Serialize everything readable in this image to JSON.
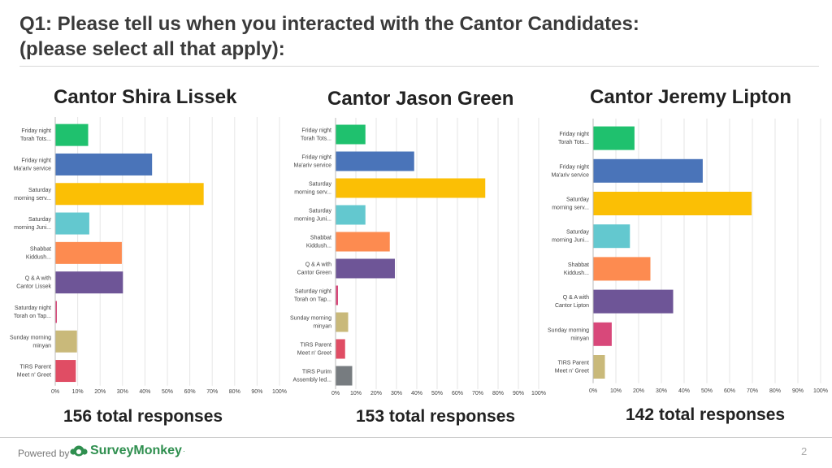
{
  "slide": {
    "title_line1": "Q1: Please tell us when you interacted with the Cantor Candidates:",
    "title_line2": "(please select all that apply):",
    "page_number": "2"
  },
  "footer": {
    "powered_by": "Powered by",
    "brand": "SurveyMonkey",
    "brand_mark": "·"
  },
  "colors": [
    "#1fc16e",
    "#4a74b9",
    "#fbbf05",
    "#63c8cf",
    "#fd8b50",
    "#6e5597",
    "#d8487a",
    "#c9b97a",
    "#e04d64",
    "#777c80"
  ],
  "candidates": [
    {
      "name": "Cantor Shira Lissek",
      "responses": "156 total responses"
    },
    {
      "name": "Cantor Jason Green",
      "responses": "153 total responses"
    },
    {
      "name": "Cantor Jeremy Lipton",
      "responses": "142 total responses"
    }
  ],
  "chart_data": [
    {
      "type": "bar",
      "orientation": "horizontal",
      "title": "Cantor Shira Lissek",
      "categories": [
        [
          "Friday night",
          "Torah Tots..."
        ],
        [
          "Friday night",
          "Ma'ariv service"
        ],
        [
          "Saturday",
          "morning serv..."
        ],
        [
          "Saturday",
          "morning Juni..."
        ],
        [
          "Shabbat",
          "Kiddush..."
        ],
        [
          "Q & A with",
          "Cantor Lissek"
        ],
        [
          "Saturday night",
          "Torah on Tap..."
        ],
        [
          "Sunday morning",
          "minyan"
        ],
        [
          "TIRS Parent",
          "Meet n' Greet"
        ]
      ],
      "color_index": [
        0,
        1,
        2,
        3,
        4,
        5,
        6,
        7,
        8
      ],
      "values": [
        14.5,
        43,
        66,
        15,
        29.5,
        30,
        0.5,
        9.5,
        9
      ],
      "xlim": [
        0,
        100
      ],
      "xticks": [
        "0%",
        "10%",
        "20%",
        "30%",
        "40%",
        "50%",
        "60%",
        "70%",
        "80%",
        "90%",
        "100%"
      ],
      "grid": true,
      "total": "156 total responses"
    },
    {
      "type": "bar",
      "orientation": "horizontal",
      "title": "Cantor Jason Green",
      "categories": [
        [
          "Friday night",
          "Torah Tots..."
        ],
        [
          "Friday night",
          "Ma'ariv service"
        ],
        [
          "Saturday",
          "morning serv..."
        ],
        [
          "Saturday",
          "morning Juni..."
        ],
        [
          "Shabbat",
          "Kiddush..."
        ],
        [
          "Q & A with",
          "Cantor Green"
        ],
        [
          "Saturday night",
          "Torah on Tap..."
        ],
        [
          "Sunday morning",
          "minyan"
        ],
        [
          "TIRS Parent",
          "Meet n' Greet"
        ],
        [
          "TIRS Purim",
          "Assembly led..."
        ]
      ],
      "color_index": [
        0,
        1,
        2,
        3,
        4,
        5,
        6,
        7,
        8,
        9
      ],
      "values": [
        14.5,
        38.5,
        73.5,
        14.5,
        26.5,
        29,
        1,
        6,
        4.5,
        8
      ],
      "xlim": [
        0,
        100
      ],
      "xticks": [
        "0%",
        "10%",
        "20%",
        "30%",
        "40%",
        "50%",
        "60%",
        "70%",
        "80%",
        "90%",
        "100%"
      ],
      "grid": true,
      "total": "153 total responses"
    },
    {
      "type": "bar",
      "orientation": "horizontal",
      "title": "Cantor Jeremy Lipton",
      "categories": [
        [
          "Friday night",
          "Torah Tots..."
        ],
        [
          "Friday night",
          "Ma'ariv service"
        ],
        [
          "Saturday",
          "morning serv..."
        ],
        [
          "Saturday",
          "morning Juni..."
        ],
        [
          "Shabbat",
          "Kiddush..."
        ],
        [
          "Q & A with",
          "Cantor Lipton"
        ],
        [
          "Sunday morning",
          "minyan"
        ],
        [
          "TIRS Parent",
          "Meet n' Greet"
        ]
      ],
      "color_index": [
        0,
        1,
        2,
        3,
        4,
        5,
        6,
        7
      ],
      "values": [
        18,
        48,
        69.5,
        16,
        25,
        35,
        8,
        5
      ],
      "xlim": [
        0,
        100
      ],
      "xticks": [
        "0%",
        "10%",
        "20%",
        "30%",
        "40%",
        "50%",
        "60%",
        "70%",
        "80%",
        "90%",
        "100%"
      ],
      "grid": true,
      "total": "142 total responses"
    }
  ]
}
